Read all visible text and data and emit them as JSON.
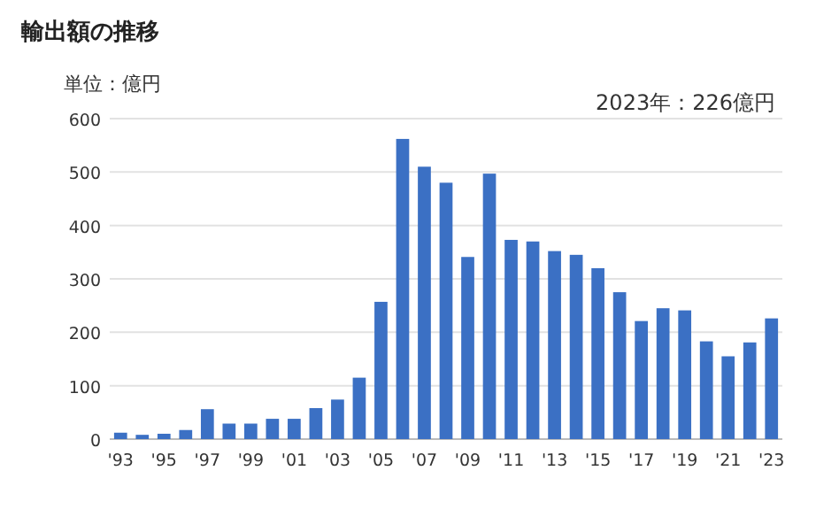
{
  "chart_data": {
    "type": "bar",
    "title": "輸出額の推移",
    "ylabel": "単位：億円",
    "annotations": [
      "2023年：226億円"
    ],
    "categories": [
      "'93",
      null,
      "'95",
      null,
      "'97",
      null,
      "'99",
      null,
      "'01",
      null,
      "'03",
      null,
      "'05",
      null,
      "'07",
      null,
      "'09",
      null,
      "'11",
      null,
      "'13",
      null,
      "'15",
      null,
      "'17",
      null,
      "'19",
      null,
      "'21",
      null,
      "'23"
    ],
    "values": [
      12,
      8,
      10,
      17,
      56,
      29,
      29,
      38,
      38,
      58,
      74,
      115,
      257,
      562,
      510,
      480,
      341,
      497,
      373,
      370,
      352,
      345,
      320,
      275,
      221,
      245,
      241,
      183,
      155,
      181,
      226
    ],
    "color": "#3b70c4",
    "ylim": [
      0,
      600
    ],
    "yticks": [
      0,
      100,
      200,
      300,
      400,
      500,
      600
    ],
    "grid": "y"
  }
}
